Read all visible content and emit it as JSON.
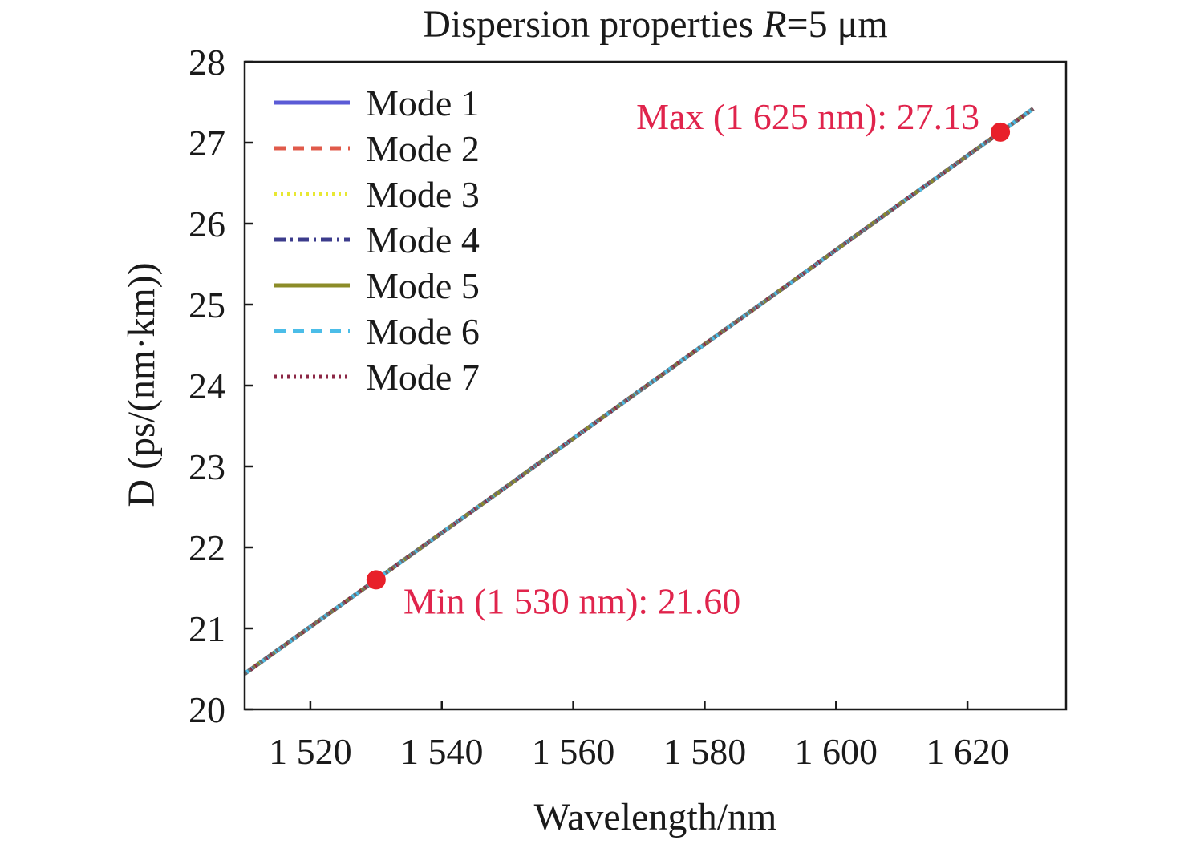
{
  "chart_data": {
    "type": "line",
    "title": {
      "prefix": "Dispersion properties ",
      "italic": "R",
      "suffix": "=5 μm"
    },
    "xlabel": "Wavelength/nm",
    "ylabel": "D (ps/(nm·km))",
    "xlim": [
      1510,
      1635
    ],
    "ylim": [
      20,
      28
    ],
    "xticks": [
      1520,
      1540,
      1560,
      1580,
      1600,
      1620
    ],
    "xtick_labels": [
      "1 520",
      "1 540",
      "1 560",
      "1 580",
      "1 600",
      "1 620"
    ],
    "yticks": [
      20,
      21,
      22,
      23,
      24,
      25,
      26,
      27,
      28
    ],
    "ytick_labels": [
      "20",
      "21",
      "22",
      "23",
      "24",
      "25",
      "26",
      "27",
      "28"
    ],
    "grid": false,
    "legend_position": "top-left",
    "x": [
      1510,
      1530,
      1550,
      1570,
      1590,
      1610,
      1625,
      1630
    ],
    "series": [
      {
        "name": "Mode 1",
        "color": "#5b5bd6",
        "dash": "solid",
        "values": [
          20.44,
          21.6,
          22.76,
          23.93,
          25.09,
          26.26,
          27.13,
          27.42
        ]
      },
      {
        "name": "Mode 2",
        "color": "#e05a4a",
        "dash": "dash",
        "values": [
          20.44,
          21.6,
          22.76,
          23.93,
          25.09,
          26.26,
          27.13,
          27.42
        ]
      },
      {
        "name": "Mode 3",
        "color": "#e8e832",
        "dash": "dot",
        "values": [
          20.44,
          21.6,
          22.76,
          23.93,
          25.09,
          26.26,
          27.13,
          27.42
        ]
      },
      {
        "name": "Mode 4",
        "color": "#3c3c8c",
        "dash": "dashdot",
        "values": [
          20.44,
          21.6,
          22.76,
          23.93,
          25.09,
          26.26,
          27.13,
          27.42
        ]
      },
      {
        "name": "Mode 5",
        "color": "#8c8c28",
        "dash": "solid",
        "values": [
          20.44,
          21.6,
          22.76,
          23.93,
          25.09,
          26.26,
          27.13,
          27.42
        ]
      },
      {
        "name": "Mode 6",
        "color": "#4bbde8",
        "dash": "dash",
        "values": [
          20.44,
          21.6,
          22.76,
          23.93,
          25.09,
          26.26,
          27.13,
          27.42
        ]
      },
      {
        "name": "Mode 7",
        "color": "#8c2846",
        "dash": "dot",
        "values": [
          20.44,
          21.6,
          22.76,
          23.93,
          25.09,
          26.26,
          27.13,
          27.42
        ]
      }
    ],
    "overlay_color": "#6e6e6e",
    "markers": [
      {
        "x": 1530,
        "y": 21.6,
        "label": "Min (1 530 nm): 21.60",
        "color": "#e8202a",
        "text_color": "#e0244c"
      },
      {
        "x": 1625,
        "y": 27.13,
        "label": "Max (1 625 nm): 27.13",
        "color": "#e8202a",
        "text_color": "#e0244c"
      }
    ]
  }
}
